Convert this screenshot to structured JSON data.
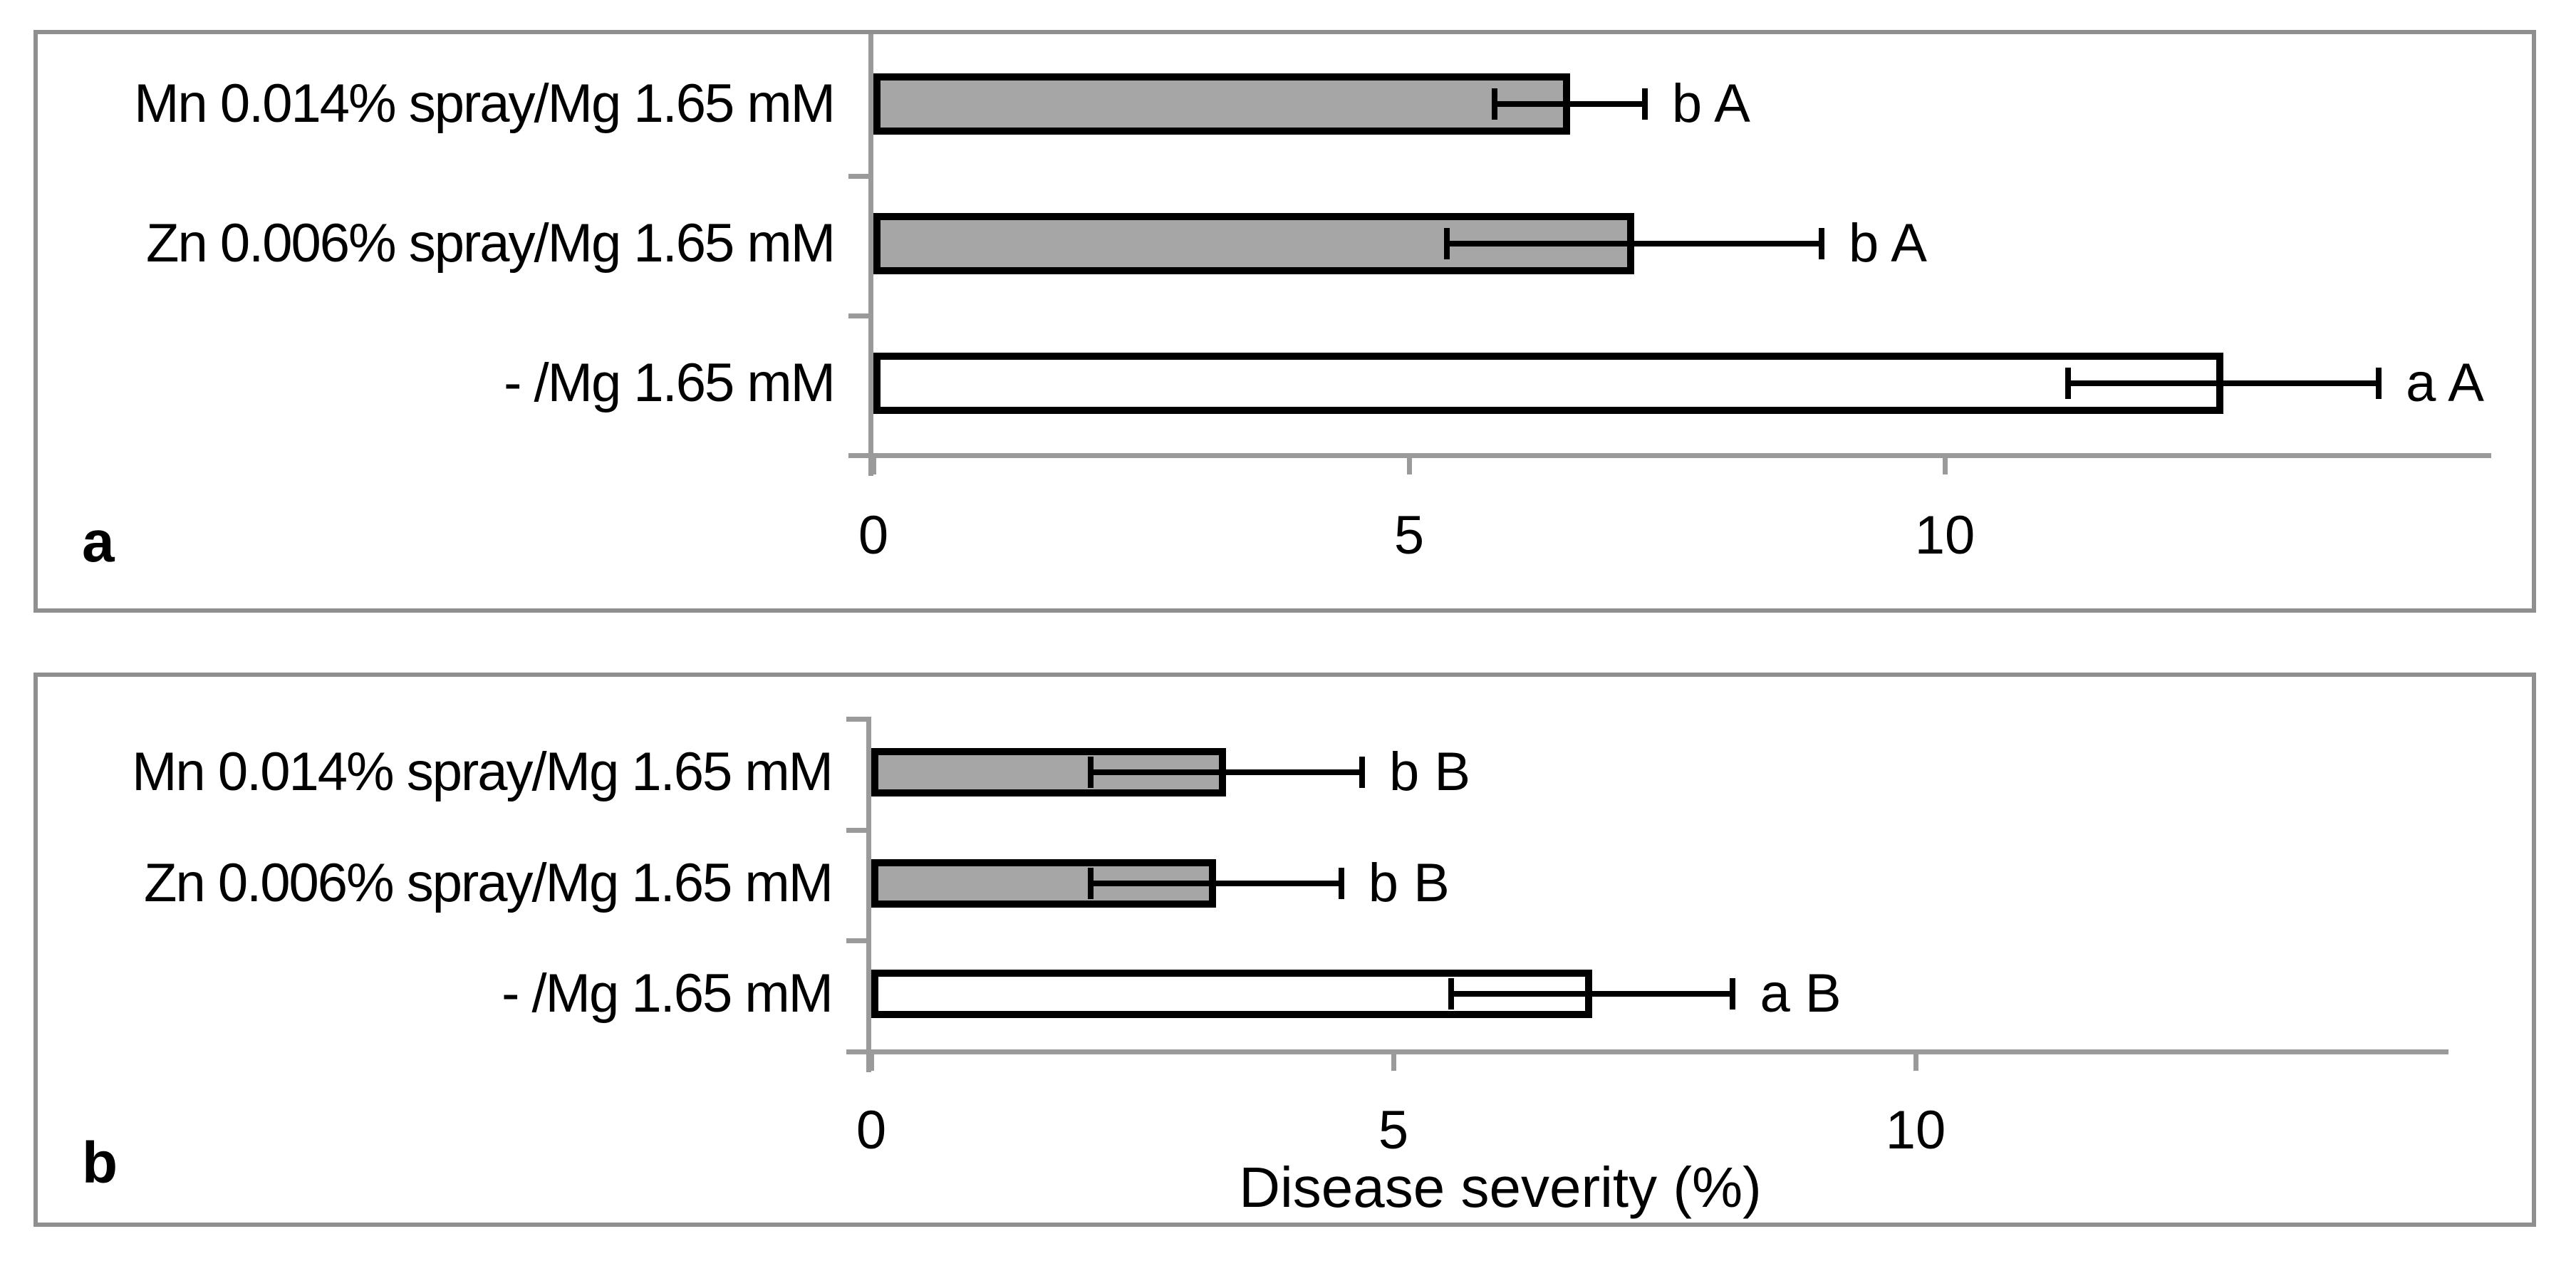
{
  "figure": {
    "description": "Two-panel horizontal bar chart of disease severity (%) for three nutrient treatments",
    "shared_x_axis_label": "Disease severity (%)"
  },
  "colors": {
    "bar_gray_fill": "#a6a6a6",
    "bar_white_fill": "#ffffff",
    "bar_border": "#000000",
    "error_bar": "#000000",
    "axis_line": "#9a9a9a",
    "panel_border": "#8f8f8f",
    "text": "#000000",
    "background": "#ffffff"
  },
  "chart_data": [
    {
      "panel_label": "a",
      "type": "bar",
      "orientation": "horizontal",
      "title": "",
      "xlabel": "",
      "ylabel": "",
      "x_ticks": [
        "0",
        "5",
        "10"
      ],
      "x_tick_values": [
        0,
        5,
        10
      ],
      "x_max": 15.1,
      "grid": false,
      "legend": "none",
      "categories": [
        "Mn 0.014% spray/Mg 1.65 mM",
        "Zn 0.006% spray/Mg 1.65 mM",
        "- /Mg 1.65 mM"
      ],
      "values": [
        6.5,
        7.1,
        12.6
      ],
      "errors": [
        0.7,
        1.75,
        1.45
      ],
      "significance_labels": [
        "b A",
        "b A",
        "a A"
      ],
      "bar_colors": [
        "#a6a6a6",
        "#a6a6a6",
        "#ffffff"
      ]
    },
    {
      "panel_label": "b",
      "type": "bar",
      "orientation": "horizontal",
      "title": "",
      "xlabel": "Disease severity (%)",
      "ylabel": "",
      "x_ticks": [
        "0",
        "5",
        "10"
      ],
      "x_tick_values": [
        0,
        5,
        10
      ],
      "x_max": 15.1,
      "grid": false,
      "legend": "none",
      "categories": [
        "Mn 0.014% spray/Mg 1.65 mM",
        "Zn 0.006% spray/Mg 1.65 mM",
        "- /Mg 1.65 mM"
      ],
      "values": [
        3.4,
        3.3,
        6.9
      ],
      "errors": [
        1.3,
        1.2,
        1.35
      ],
      "significance_labels": [
        "b B",
        "b B",
        "a B"
      ],
      "bar_colors": [
        "#a6a6a6",
        "#a6a6a6",
        "#ffffff"
      ]
    }
  ]
}
